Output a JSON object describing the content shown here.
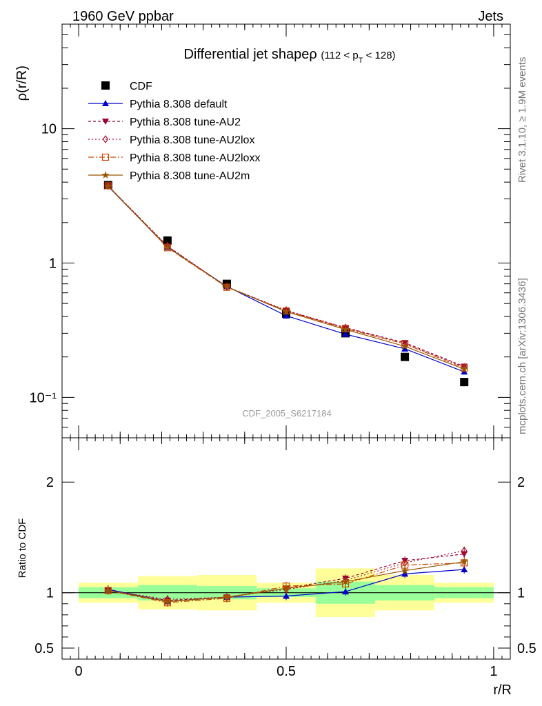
{
  "header": {
    "left": "1960 GeV ppbar",
    "right": "Jets"
  },
  "side_labels": {
    "top": "Rivet 3.1.10, ≥ 1.9M events",
    "bottom": "mcplots.cern.ch [arXiv:1306.3436]"
  },
  "watermark": "CDF_2005_S6217184",
  "title": {
    "main": "Differential jet shapeρ",
    "sub_prefix": "(112 < p",
    "sub_index": "T",
    "sub_suffix": " < 128)"
  },
  "colors": {
    "cdf": "#000000",
    "default": "#0000cc",
    "au2": "#990033",
    "au2lox": "#aa1133",
    "au2loxx": "#cc4400",
    "au2m": "#995500",
    "band_inner": "#99ff99",
    "band_outer": "#ffff99"
  },
  "chart_data": [
    {
      "type": "line",
      "ylabel": "ρ(r/R)",
      "yscale": "log",
      "ylim": [
        0.05,
        60
      ],
      "xlim": [
        -0.04,
        1.04
      ],
      "ytick_labels": [
        "10⁻¹",
        "1",
        "10"
      ],
      "x": [
        0.071,
        0.214,
        0.357,
        0.5,
        0.643,
        0.786,
        0.929
      ],
      "series": [
        {
          "name": "CDF",
          "key": "cdf",
          "marker": "square",
          "values": [
            3.8,
            1.47,
            0.7,
            0.42,
            0.3,
            0.2,
            0.13
          ]
        },
        {
          "name": "Pythia 8.308 default",
          "key": "default",
          "marker": "triangle-up",
          "dash": "",
          "values": [
            3.72,
            1.31,
            0.67,
            0.405,
            0.295,
            0.23,
            0.155
          ]
        },
        {
          "name": "Pythia 8.308 tune-AU2",
          "key": "au2",
          "marker": "triangle-down",
          "dash": "4,3",
          "values": [
            3.75,
            1.33,
            0.665,
            0.44,
            0.33,
            0.255,
            0.17
          ]
        },
        {
          "name": "Pythia 8.308 tune-AU2lox",
          "key": "au2lox",
          "marker": "diamond",
          "dash": "2,3",
          "values": [
            3.75,
            1.34,
            0.665,
            0.445,
            0.33,
            0.25,
            0.168
          ]
        },
        {
          "name": "Pythia 8.308 tune-AU2loxx",
          "key": "au2loxx",
          "marker": "square-open",
          "dash": "8,3,2,3",
          "values": [
            3.76,
            1.3,
            0.66,
            0.44,
            0.325,
            0.25,
            0.165
          ]
        },
        {
          "name": "Pythia 8.308 tune-AU2m",
          "key": "au2m",
          "marker": "star",
          "dash": "",
          "values": [
            3.74,
            1.31,
            0.665,
            0.435,
            0.32,
            0.24,
            0.162
          ]
        }
      ]
    },
    {
      "type": "line",
      "ylabel": "Ratio to CDF",
      "xlabel": "r/R",
      "ylim": [
        0.4,
        2.4
      ],
      "xlim": [
        -0.04,
        1.04
      ],
      "ytick_labels": [
        "0.5",
        "1",
        "2"
      ],
      "xtick_labels": [
        "0",
        "0.5",
        "1"
      ],
      "bands": {
        "edges": [
          0.0,
          0.143,
          0.286,
          0.429,
          0.571,
          0.714,
          0.857,
          1.0
        ],
        "inner": [
          0.05,
          0.07,
          0.06,
          0.04,
          0.1,
          0.07,
          0.05
        ],
        "outer": [
          0.09,
          0.15,
          0.16,
          0.09,
          0.22,
          0.16,
          0.09
        ]
      },
      "x": [
        0.071,
        0.214,
        0.357,
        0.5,
        0.643,
        0.786,
        0.929
      ],
      "series": [
        {
          "name": "Pythia 8.308 default",
          "key": "default",
          "marker": "triangle-up",
          "dash": "",
          "values": [
            1.03,
            0.92,
            0.96,
            0.97,
            1.01,
            1.17,
            1.21
          ]
        },
        {
          "name": "Pythia 8.308 tune-AU2",
          "key": "au2",
          "marker": "triangle-down",
          "dash": "4,3",
          "values": [
            1.02,
            0.93,
            0.96,
            1.04,
            1.13,
            1.29,
            1.35
          ]
        },
        {
          "name": "Pythia 8.308 tune-AU2lox",
          "key": "au2lox",
          "marker": "diamond",
          "dash": "2,3",
          "values": [
            1.02,
            0.94,
            0.96,
            1.03,
            1.11,
            1.27,
            1.38
          ]
        },
        {
          "name": "Pythia 8.308 tune-AU2loxx",
          "key": "au2loxx",
          "marker": "square-open",
          "dash": "8,3,2,3",
          "values": [
            1.02,
            0.91,
            0.95,
            1.06,
            1.08,
            1.25,
            1.27
          ]
        },
        {
          "name": "Pythia 8.308 tune-AU2m",
          "key": "au2m",
          "marker": "star",
          "dash": "",
          "values": [
            1.02,
            0.92,
            0.96,
            1.04,
            1.1,
            1.2,
            1.28
          ]
        }
      ]
    }
  ]
}
